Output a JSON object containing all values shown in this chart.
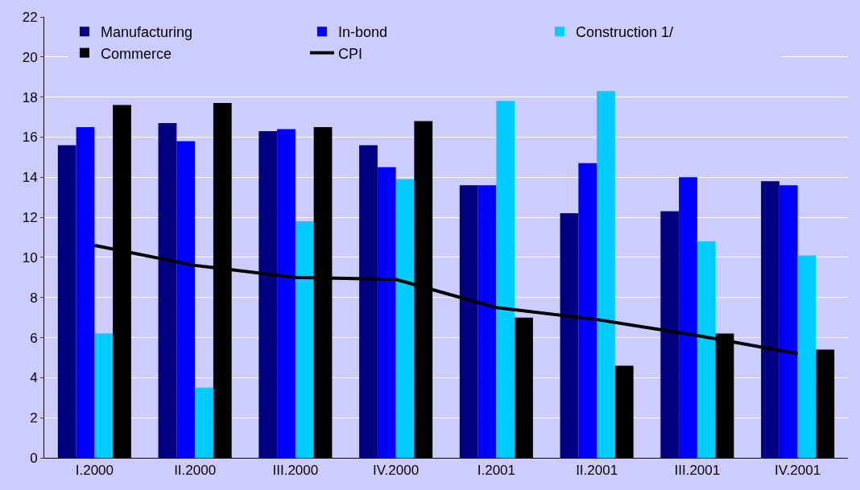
{
  "chart_data": {
    "type": "bar",
    "categories": [
      "I.2000",
      "II.2000",
      "III.2000",
      "IV.2000",
      "I.2001",
      "II.2001",
      "III.2001",
      "IV.2001"
    ],
    "series": [
      {
        "name": "Manufacturing",
        "color": "#000080",
        "values": [
          15.6,
          16.7,
          16.3,
          15.6,
          13.6,
          12.2,
          12.3,
          13.8
        ]
      },
      {
        "name": "In-bond",
        "color": "#0000ff",
        "values": [
          16.5,
          15.8,
          16.4,
          14.5,
          13.6,
          14.7,
          14.0,
          13.6
        ]
      },
      {
        "name": "Construction 1/",
        "color": "#00ccff",
        "values": [
          6.2,
          3.5,
          11.8,
          13.9,
          17.8,
          18.3,
          10.8,
          10.1
        ]
      },
      {
        "name": "Commerce",
        "color": "#000000",
        "values": [
          17.6,
          17.7,
          16.5,
          16.8,
          7.0,
          4.6,
          6.2,
          5.4
        ]
      },
      {
        "name": "CPI",
        "type": "line",
        "color": "#000000",
        "values": [
          10.6,
          9.6,
          9.0,
          8.9,
          7.5,
          6.9,
          6.1,
          5.2
        ]
      }
    ],
    "ylim": [
      0,
      22
    ],
    "yticks": [
      0,
      2,
      4,
      6,
      8,
      10,
      12,
      14,
      16,
      18,
      20,
      22
    ],
    "grid": "y",
    "legend": "top left",
    "marker": "none",
    "line_style": "solid"
  }
}
